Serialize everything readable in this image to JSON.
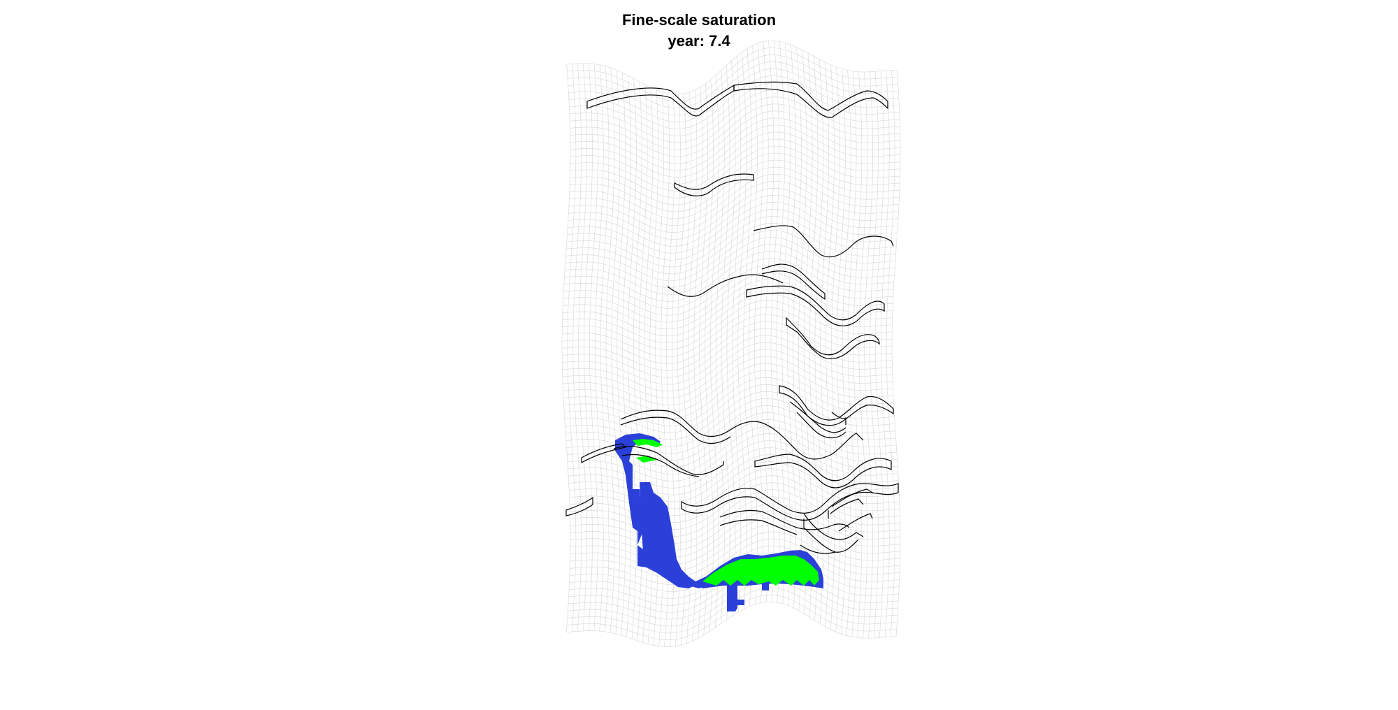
{
  "figure": {
    "title": "Fine-scale saturation",
    "subtitle": "year: 7.4"
  },
  "colors": {
    "background": "#ffffff",
    "grid": "#d6d6d6",
    "layer_outline": "#000000",
    "co2_plume": "#2b40d8",
    "co2_trapped": "#00ff00"
  }
}
